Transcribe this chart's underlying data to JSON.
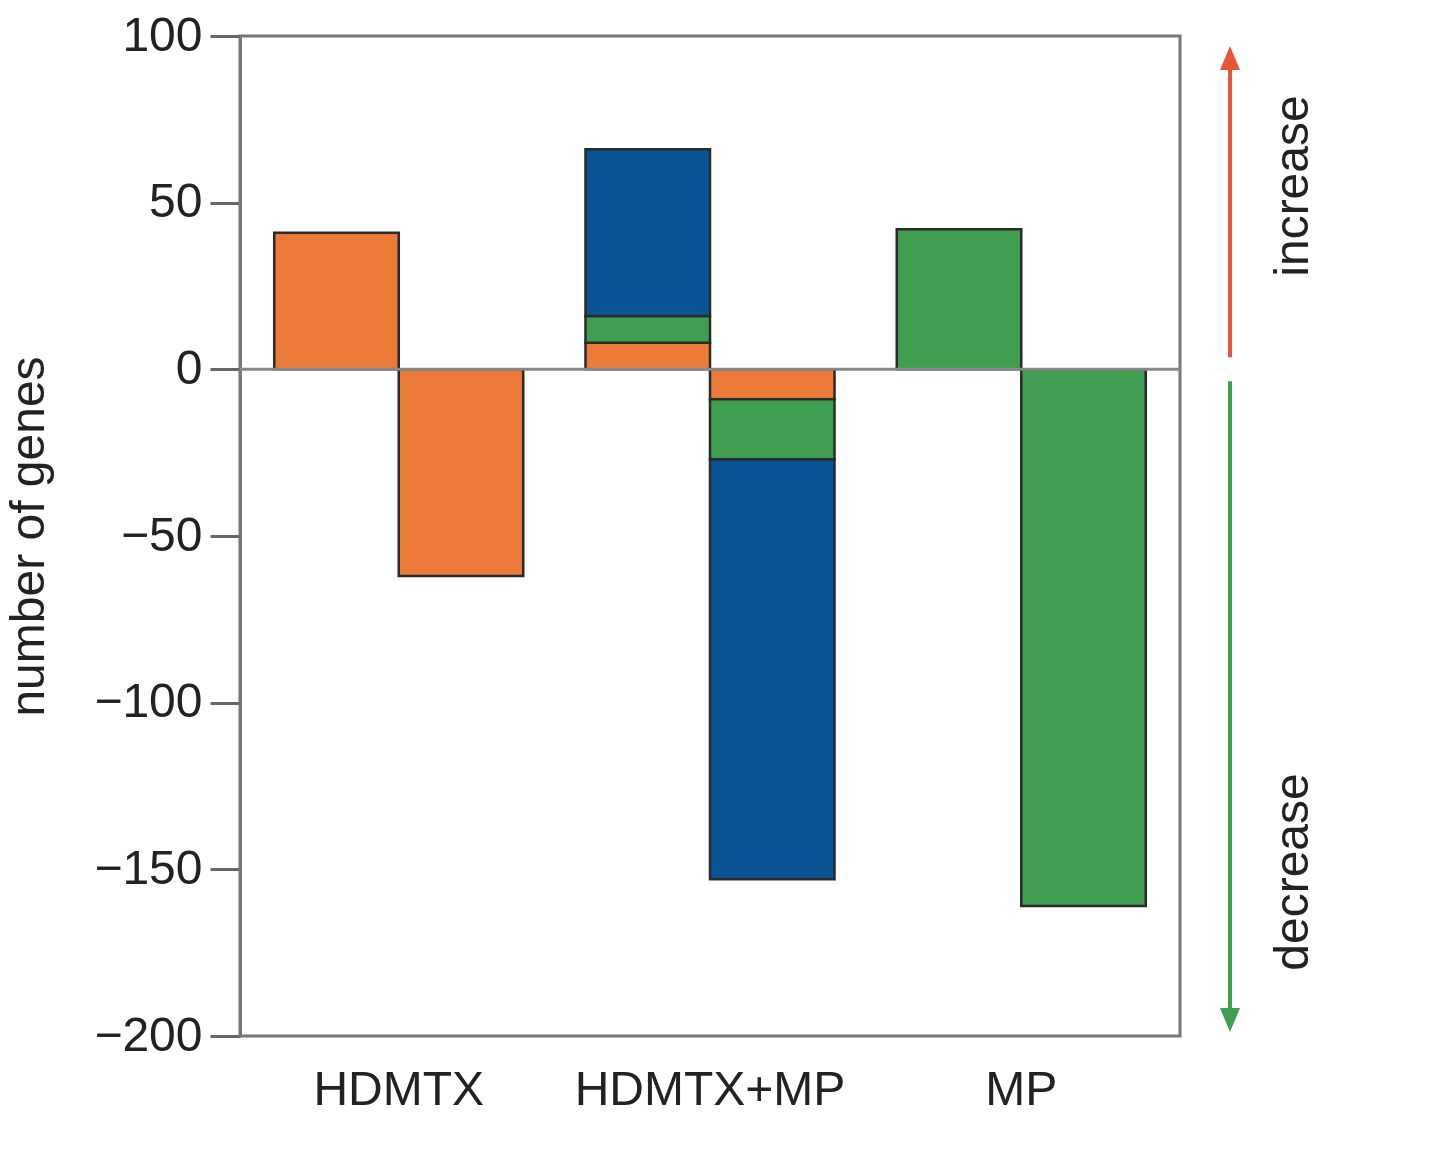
{
  "chart_data": {
    "type": "bar",
    "stacked": true,
    "categories": [
      "HDMTX",
      "HDMTX+MP",
      "MP"
    ],
    "ylabel": "number of genes",
    "ylim": [
      -200,
      100
    ],
    "yticks": [
      -200,
      -150,
      -100,
      -50,
      0,
      50,
      100
    ],
    "grid": false,
    "legend": false,
    "series": [
      {
        "color": "#ec7a38",
        "values": [
          41,
          8,
          null
        ]
      },
      {
        "color": "#ec7a38",
        "values": [
          -62,
          -9,
          null
        ]
      },
      {
        "color": "#3f9e50",
        "values": [
          null,
          8,
          42
        ]
      },
      {
        "color": "#3f9e50",
        "values": [
          null,
          -18,
          -161
        ]
      },
      {
        "color": "#0a5394",
        "values": [
          null,
          50,
          null
        ]
      },
      {
        "color": "#0a5394",
        "values": [
          null,
          -126,
          null
        ]
      }
    ],
    "ref_lines": [
      {
        "axis": "y",
        "value": 0,
        "color": "#888888"
      }
    ],
    "annotations": [
      "increase",
      "decrease"
    ]
  }
}
